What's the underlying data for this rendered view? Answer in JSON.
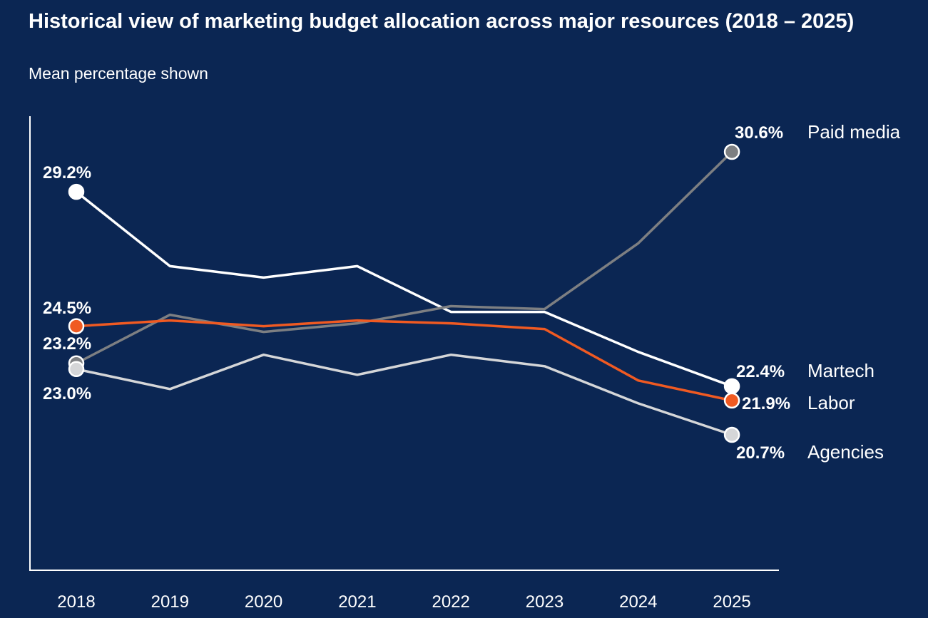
{
  "chart_data": {
    "type": "line",
    "title": "Historical view of marketing budget allocation across major resources (2018 – 2025)",
    "subtitle": "Mean percentage shown",
    "x": [
      "2018",
      "2019",
      "2020",
      "2021",
      "2022",
      "2023",
      "2024",
      "2025"
    ],
    "ylim": [
      15,
      32
    ],
    "grid": false,
    "series": [
      {
        "name": "Martech",
        "values": [
          29.2,
          26.6,
          26.2,
          26.6,
          25.0,
          25.0,
          23.6,
          22.4
        ],
        "color": "#ffffff",
        "start_label": "29.2%",
        "end_label": "22.4%"
      },
      {
        "name": "Paid media",
        "values": [
          23.2,
          24.9,
          24.3,
          24.6,
          25.2,
          25.1,
          27.4,
          30.6
        ],
        "color": "#7d7f82",
        "start_label": "23.2%",
        "end_label": "30.6%"
      },
      {
        "name": "Labor",
        "values": [
          24.5,
          24.7,
          24.5,
          24.7,
          24.6,
          24.4,
          22.6,
          21.9
        ],
        "color": "#f05a22",
        "start_label": "24.5%",
        "end_label": "21.9%"
      },
      {
        "name": "Agencies",
        "values": [
          23.0,
          22.3,
          23.5,
          22.8,
          23.5,
          23.1,
          21.8,
          20.7
        ],
        "color": "#d5d6d8",
        "start_label": "23.0%",
        "end_label": "20.7%"
      }
    ]
  }
}
